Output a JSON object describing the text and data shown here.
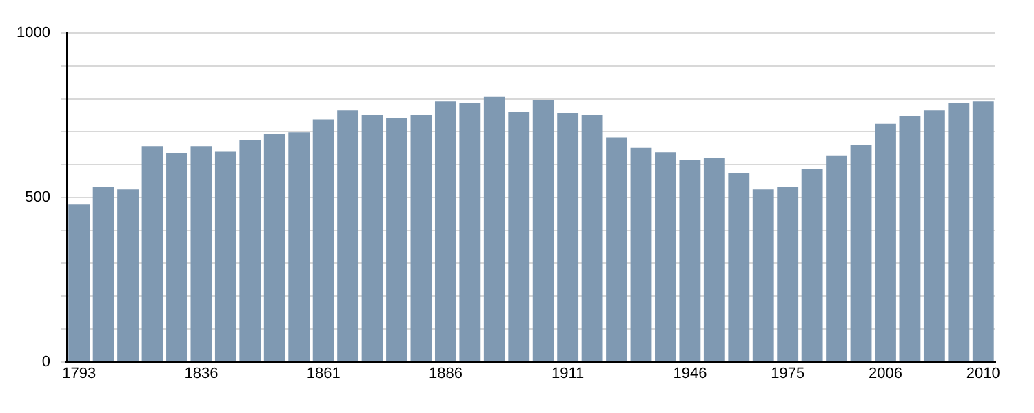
{
  "chart_data": {
    "type": "bar",
    "categories": [
      "1793",
      null,
      null,
      null,
      null,
      "1836",
      null,
      null,
      null,
      null,
      "1861",
      null,
      null,
      null,
      null,
      "1886",
      null,
      null,
      null,
      null,
      "1911",
      null,
      null,
      null,
      null,
      "1946",
      null,
      null,
      null,
      "1975",
      null,
      null,
      null,
      "2006",
      null,
      null,
      null,
      "2010"
    ],
    "values": [
      478,
      533,
      524,
      656,
      634,
      656,
      639,
      675,
      694,
      698,
      737,
      765,
      751,
      742,
      751,
      792,
      788,
      806,
      760,
      797,
      757,
      751,
      683,
      651,
      637,
      615,
      619,
      574,
      524,
      533,
      587,
      628,
      660,
      724,
      747,
      765,
      788,
      792
    ],
    "color": "#7f99b2",
    "ylim": [
      0,
      1000
    ],
    "yticks": [
      0,
      {
        "value": 100,
        "label": null
      },
      {
        "value": 200,
        "label": null
      },
      {
        "value": 300,
        "label": null
      },
      {
        "value": 400,
        "label": null
      },
      500,
      {
        "value": 600,
        "label": null
      },
      {
        "value": 700,
        "label": null
      },
      {
        "value": 800,
        "label": null
      },
      {
        "value": 900,
        "label": null
      },
      1000
    ],
    "grid": "y"
  }
}
